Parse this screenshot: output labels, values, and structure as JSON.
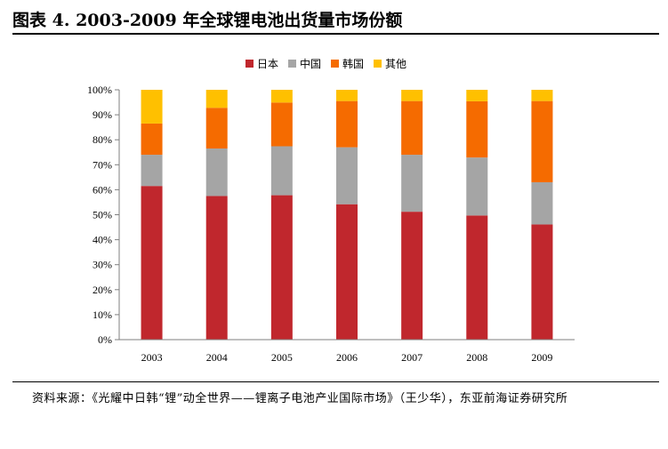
{
  "header": {
    "title": "图表 4.   2003-2009 年全球锂电池出货量市场份额"
  },
  "source": {
    "text": "资料来源：《光耀中日韩“锂”动全世界——锂离子电池产业国际市场》（王少华），东亚前海证券研究所"
  },
  "chart_data": {
    "type": "bar",
    "stacked": true,
    "categories": [
      "2003",
      "2004",
      "2005",
      "2006",
      "2007",
      "2008",
      "2009"
    ],
    "ylim": [
      0,
      100
    ],
    "yticks": [
      0,
      10,
      20,
      30,
      40,
      50,
      60,
      70,
      80,
      90,
      100
    ],
    "ytick_labels": [
      "0%",
      "10%",
      "20%",
      "30%",
      "40%",
      "50%",
      "60%",
      "70%",
      "80%",
      "90%",
      "100%"
    ],
    "legend_position": "top-center",
    "grid": false,
    "series": [
      {
        "name": "日本",
        "color": "#c0272d",
        "values": [
          61.5,
          57.5,
          57.8,
          54.2,
          51.2,
          49.7,
          46.1
        ]
      },
      {
        "name": "中国",
        "color": "#a5a5a5",
        "values": [
          12.5,
          19.0,
          19.6,
          22.8,
          22.8,
          23.2,
          16.9
        ]
      },
      {
        "name": "韩国",
        "color": "#f56b00",
        "values": [
          12.5,
          16.3,
          17.5,
          18.5,
          21.5,
          22.5,
          32.5
        ]
      },
      {
        "name": "其他",
        "color": "#ffc000",
        "values": [
          13.5,
          7.2,
          5.1,
          4.5,
          4.5,
          4.6,
          4.5
        ]
      }
    ]
  }
}
